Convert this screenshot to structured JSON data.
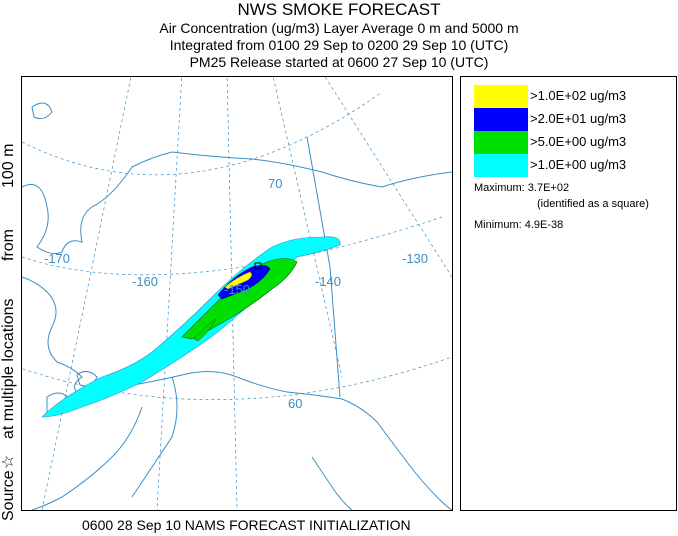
{
  "header": {
    "title": "NWS SMOKE FORECAST",
    "line2": "Air Concentration (ug/m3) Layer Average    0 m and  5000 m",
    "line3": "Integrated from 0100 29 Sep to 0200 29 Sep 10 (UTC)",
    "line4": "PM25 Release started at 0600 27 Sep 10 (UTC)"
  },
  "side_label": {
    "part1": "Source",
    "star": "☆",
    "part2": "at multiple locations",
    "part3": "from",
    "part4": "100 m"
  },
  "map": {
    "longitude_labels": [
      "-170",
      "-160",
      "-150",
      "-140",
      "-130"
    ],
    "latitude_labels": [
      "70",
      "60"
    ],
    "colors": {
      "graticule": "#3c8fc4",
      "coast": "#3c8fc4",
      "border": "#3c8fc4"
    }
  },
  "legend": {
    "items": [
      {
        "label": ">1.0E+02 ug/m3",
        "color": "#ffff00"
      },
      {
        "label": ">2.0E+01 ug/m3",
        "color": "#0000ff"
      },
      {
        "label": ">5.0E+00 ug/m3",
        "color": "#00e000"
      },
      {
        "label": ">1.0E+00 ug/m3",
        "color": "#00ffff"
      }
    ],
    "maximum": "Maximum: 3.7E+02",
    "identified": "(identified as a square)",
    "minimum": "Minimum: 4.9E-38"
  },
  "footer": "0600 28 Sep 10 NAMS FORECAST INITIALIZATION"
}
